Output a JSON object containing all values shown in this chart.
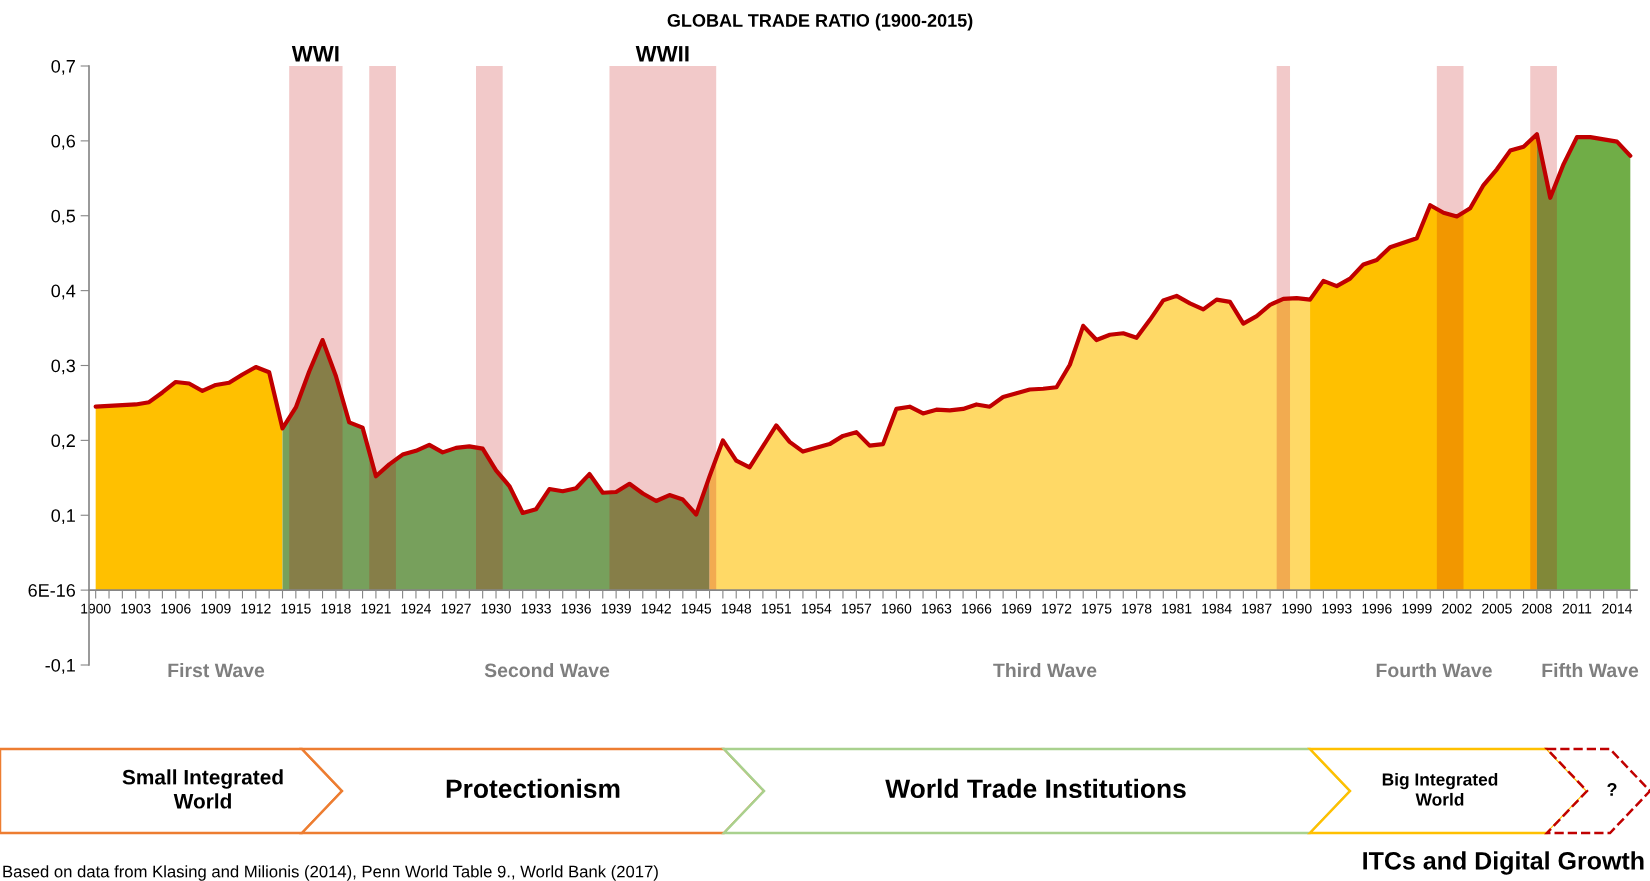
{
  "chart_data": {
    "type": "area",
    "title": "GLOBAL TRADE RATIO (1900-2015)",
    "xlim": [
      1899.5,
      2015.5
    ],
    "xticks": [
      1900,
      {
        "value": 1901,
        "label": null
      },
      {
        "value": 1902,
        "label": null
      },
      1903,
      {
        "value": 1904,
        "label": null
      },
      {
        "value": 1905,
        "label": null
      },
      1906,
      {
        "value": 1907,
        "label": null
      },
      {
        "value": 1908,
        "label": null
      },
      1909,
      {
        "value": 1910,
        "label": null
      },
      {
        "value": 1911,
        "label": null
      },
      1912,
      {
        "value": 1913,
        "label": null
      },
      {
        "value": 1914,
        "label": null
      },
      1915,
      {
        "value": 1916,
        "label": null
      },
      {
        "value": 1917,
        "label": null
      },
      1918,
      {
        "value": 1919,
        "label": null
      },
      {
        "value": 1920,
        "label": null
      },
      1921,
      {
        "value": 1922,
        "label": null
      },
      {
        "value": 1923,
        "label": null
      },
      1924,
      {
        "value": 1925,
        "label": null
      },
      {
        "value": 1926,
        "label": null
      },
      1927,
      {
        "value": 1928,
        "label": null
      },
      {
        "value": 1929,
        "label": null
      },
      1930,
      {
        "value": 1931,
        "label": null
      },
      {
        "value": 1932,
        "label": null
      },
      1933,
      {
        "value": 1934,
        "label": null
      },
      {
        "value": 1935,
        "label": null
      },
      1936,
      {
        "value": 1937,
        "label": null
      },
      {
        "value": 1938,
        "label": null
      },
      1939,
      {
        "value": 1940,
        "label": null
      },
      {
        "value": 1941,
        "label": null
      },
      1942,
      {
        "value": 1943,
        "label": null
      },
      {
        "value": 1944,
        "label": null
      },
      1945,
      {
        "value": 1946,
        "label": null
      },
      {
        "value": 1947,
        "label": null
      },
      1948,
      {
        "value": 1949,
        "label": null
      },
      {
        "value": 1950,
        "label": null
      },
      1951,
      {
        "value": 1952,
        "label": null
      },
      {
        "value": 1953,
        "label": null
      },
      1954,
      {
        "value": 1955,
        "label": null
      },
      {
        "value": 1956,
        "label": null
      },
      1957,
      {
        "value": 1958,
        "label": null
      },
      {
        "value": 1959,
        "label": null
      },
      1960,
      {
        "value": 1961,
        "label": null
      },
      {
        "value": 1962,
        "label": null
      },
      1963,
      {
        "value": 1964,
        "label": null
      },
      {
        "value": 1965,
        "label": null
      },
      1966,
      {
        "value": 1967,
        "label": null
      },
      {
        "value": 1968,
        "label": null
      },
      1969,
      {
        "value": 1970,
        "label": null
      },
      {
        "value": 1971,
        "label": null
      },
      1972,
      {
        "value": 1973,
        "label": null
      },
      {
        "value": 1974,
        "label": null
      },
      1975,
      {
        "value": 1976,
        "label": null
      },
      {
        "value": 1977,
        "label": null
      },
      1978,
      {
        "value": 1979,
        "label": null
      },
      {
        "value": 1980,
        "label": null
      },
      1981,
      {
        "value": 1982,
        "label": null
      },
      {
        "value": 1983,
        "label": null
      },
      1984,
      {
        "value": 1985,
        "label": null
      },
      {
        "value": 1986,
        "label": null
      },
      1987,
      {
        "value": 1988,
        "label": null
      },
      {
        "value": 1989,
        "label": null
      },
      1990,
      {
        "value": 1991,
        "label": null
      },
      {
        "value": 1992,
        "label": null
      },
      1993,
      {
        "value": 1994,
        "label": null
      },
      {
        "value": 1995,
        "label": null
      },
      1996,
      {
        "value": 1997,
        "label": null
      },
      {
        "value": 1998,
        "label": null
      },
      1999,
      {
        "value": 2000,
        "label": null
      },
      {
        "value": 2001,
        "label": null
      },
      2002,
      {
        "value": 2003,
        "label": null
      },
      {
        "value": 2004,
        "label": null
      },
      2005,
      {
        "value": 2006,
        "label": null
      },
      {
        "value": 2007,
        "label": null
      },
      2008,
      {
        "value": 2009,
        "label": null
      },
      {
        "value": 2010,
        "label": null
      },
      2011,
      {
        "value": 2012,
        "label": null
      },
      {
        "value": 2013,
        "label": null
      },
      2014,
      {
        "value": 2015,
        "label": null
      }
    ],
    "ylim": [
      -0.1,
      0.7
    ],
    "yticks": [
      {
        "value": -0.1,
        "label": "-0,1"
      },
      {
        "value": 0,
        "label": "6E-16"
      },
      {
        "value": 0.1,
        "label": "0,1"
      },
      {
        "value": 0.2,
        "label": "0,2"
      },
      {
        "value": 0.3,
        "label": "0,3"
      },
      {
        "value": 0.4,
        "label": "0,4"
      },
      {
        "value": 0.5,
        "label": "0,5"
      },
      {
        "value": 0.6,
        "label": "0,6"
      },
      {
        "value": 0.7,
        "label": "0,7"
      }
    ],
    "series": [
      {
        "color": "#ffc000",
        "x": [
          1900,
          1901,
          1902,
          1903,
          1904,
          1905,
          1906,
          1907,
          1908,
          1909,
          1910,
          1911,
          1912,
          1913,
          1914
        ],
        "values": [
          0.245,
          0.246,
          0.247,
          0.248,
          0.251,
          0.264,
          0.278,
          0.276,
          0.266,
          0.274,
          0.277,
          0.288,
          0.298,
          0.291,
          0.216
        ]
      },
      {
        "color": "#77a05c",
        "x": [
          1914,
          1915,
          1916,
          1917,
          1918,
          1919,
          1920,
          1921,
          1922,
          1923,
          1924,
          1925,
          1926,
          1927,
          1928,
          1929,
          1930,
          1931,
          1932,
          1933,
          1934,
          1935,
          1936,
          1937,
          1938,
          1939,
          1940,
          1941,
          1942,
          1943,
          1944,
          1945,
          1946
        ],
        "values": [
          0.216,
          0.244,
          0.292,
          0.334,
          0.286,
          0.224,
          0.217,
          0.152,
          0.168,
          0.181,
          0.186,
          0.194,
          0.184,
          0.19,
          0.192,
          0.189,
          0.16,
          0.139,
          0.103,
          0.108,
          0.135,
          0.132,
          0.136,
          0.155,
          0.13,
          0.131,
          0.142,
          0.129,
          0.119,
          0.127,
          0.121,
          0.101,
          0.152
        ]
      },
      {
        "color": "#ffd966",
        "x": [
          1946,
          1947,
          1948,
          1949,
          1950,
          1951,
          1952,
          1953,
          1954,
          1955,
          1956,
          1957,
          1958,
          1959,
          1960,
          1961,
          1962,
          1963,
          1964,
          1965,
          1966,
          1967,
          1968,
          1969,
          1970,
          1971,
          1972,
          1973,
          1974,
          1975,
          1976,
          1977,
          1978,
          1979,
          1980,
          1981,
          1982,
          1983,
          1984,
          1985,
          1986,
          1987,
          1988,
          1989,
          1990,
          1991
        ],
        "values": [
          0.152,
          0.2,
          0.173,
          0.164,
          0.192,
          0.22,
          0.198,
          0.185,
          0.19,
          0.195,
          0.206,
          0.211,
          0.193,
          0.195,
          0.242,
          0.245,
          0.236,
          0.241,
          0.24,
          0.242,
          0.248,
          0.245,
          0.258,
          0.263,
          0.268,
          0.269,
          0.271,
          0.301,
          0.353,
          0.334,
          0.341,
          0.343,
          0.337,
          0.361,
          0.387,
          0.393,
          0.383,
          0.375,
          0.388,
          0.385,
          0.356,
          0.366,
          0.381,
          0.389,
          0.39,
          0.388
        ]
      },
      {
        "color": "#ffc000",
        "x": [
          1991,
          1992,
          1993,
          1994,
          1995,
          1996,
          1997,
          1998,
          1999,
          2000,
          2001,
          2002,
          2003,
          2004,
          2005,
          2006,
          2007,
          2008
        ],
        "values": [
          0.388,
          0.413,
          0.406,
          0.416,
          0.435,
          0.441,
          0.458,
          0.464,
          0.47,
          0.514,
          0.504,
          0.499,
          0.51,
          0.541,
          0.562,
          0.587,
          0.592,
          0.609
        ]
      },
      {
        "color": "#70ad47",
        "x": [
          2008,
          2009,
          2010,
          2011,
          2012,
          2013,
          2014,
          2015
        ],
        "values": [
          0.609,
          0.524,
          0.569,
          0.605,
          0.605,
          0.602,
          0.599,
          0.58
        ]
      },
      {
        "type": "line",
        "color": "#c00000",
        "x": [
          1900,
          1901,
          1902,
          1903,
          1904,
          1905,
          1906,
          1907,
          1908,
          1909,
          1910,
          1911,
          1912,
          1913,
          1914,
          1915,
          1916,
          1917,
          1918,
          1919,
          1920,
          1921,
          1922,
          1923,
          1924,
          1925,
          1926,
          1927,
          1928,
          1929,
          1930,
          1931,
          1932,
          1933,
          1934,
          1935,
          1936,
          1937,
          1938,
          1939,
          1940,
          1941,
          1942,
          1943,
          1944,
          1945,
          1946,
          1947,
          1948,
          1949,
          1950,
          1951,
          1952,
          1953,
          1954,
          1955,
          1956,
          1957,
          1958,
          1959,
          1960,
          1961,
          1962,
          1963,
          1964,
          1965,
          1966,
          1967,
          1968,
          1969,
          1970,
          1971,
          1972,
          1973,
          1974,
          1975,
          1976,
          1977,
          1978,
          1979,
          1980,
          1981,
          1982,
          1983,
          1984,
          1985,
          1986,
          1987,
          1988,
          1989,
          1990,
          1991,
          1992,
          1993,
          1994,
          1995,
          1996,
          1997,
          1998,
          1999,
          2000,
          2001,
          2002,
          2003,
          2004,
          2005,
          2006,
          2007,
          2008,
          2009,
          2010,
          2011,
          2012,
          2013,
          2014,
          2015
        ],
        "values": [
          0.245,
          0.246,
          0.247,
          0.248,
          0.251,
          0.264,
          0.278,
          0.276,
          0.266,
          0.274,
          0.277,
          0.288,
          0.298,
          0.291,
          0.216,
          0.244,
          0.292,
          0.334,
          0.286,
          0.224,
          0.217,
          0.152,
          0.168,
          0.181,
          0.186,
          0.194,
          0.184,
          0.19,
          0.192,
          0.189,
          0.16,
          0.139,
          0.103,
          0.108,
          0.135,
          0.132,
          0.136,
          0.155,
          0.13,
          0.131,
          0.142,
          0.129,
          0.119,
          0.127,
          0.121,
          0.101,
          0.152,
          0.2,
          0.173,
          0.164,
          0.192,
          0.22,
          0.198,
          0.185,
          0.19,
          0.195,
          0.206,
          0.211,
          0.193,
          0.195,
          0.242,
          0.245,
          0.236,
          0.241,
          0.24,
          0.242,
          0.248,
          0.245,
          0.258,
          0.263,
          0.268,
          0.269,
          0.271,
          0.301,
          0.353,
          0.334,
          0.341,
          0.343,
          0.337,
          0.361,
          0.387,
          0.393,
          0.383,
          0.375,
          0.388,
          0.385,
          0.356,
          0.366,
          0.381,
          0.389,
          0.39,
          0.388,
          0.413,
          0.406,
          0.416,
          0.435,
          0.441,
          0.458,
          0.464,
          0.47,
          0.514,
          0.504,
          0.499,
          0.51,
          0.541,
          0.562,
          0.587,
          0.592,
          0.609,
          0.524,
          0.569,
          0.605,
          0.605,
          0.602,
          0.599,
          0.58
        ]
      }
    ],
    "bands": [
      {
        "axis": "x",
        "from": 1914.5,
        "to": 1918.5,
        "label": "WWI",
        "color": "#c00000"
      },
      {
        "axis": "x",
        "from": 1920.5,
        "to": 1922.5,
        "color": "#c00000"
      },
      {
        "axis": "x",
        "from": 1928.5,
        "to": 1930.5,
        "color": "#c00000"
      },
      {
        "axis": "x",
        "from": 1938.5,
        "to": 1946.5,
        "label": "WWII",
        "color": "#c00000"
      },
      {
        "axis": "x",
        "from": 1988.5,
        "to": 1989.5,
        "color": "#c00000"
      },
      {
        "axis": "x",
        "from": 2000.5,
        "to": 2002.5,
        "color": "#c00000"
      },
      {
        "axis": "x",
        "from": 2007.5,
        "to": 2009.5,
        "color": "#c00000"
      }
    ],
    "annotations": [
      "First Wave",
      "Second Wave",
      "Third Wave",
      "Fourth Wave",
      "Fifth Wave",
      "Small Integrated\nWorld",
      "Protectionism",
      "World Trade Institutions",
      "Big Integrated\nWorld",
      "?",
      "ITCs and Digital Growth",
      "Based on data from Klasing and Milionis (2014), Penn World Table 9., World Bank (2017)"
    ]
  }
}
